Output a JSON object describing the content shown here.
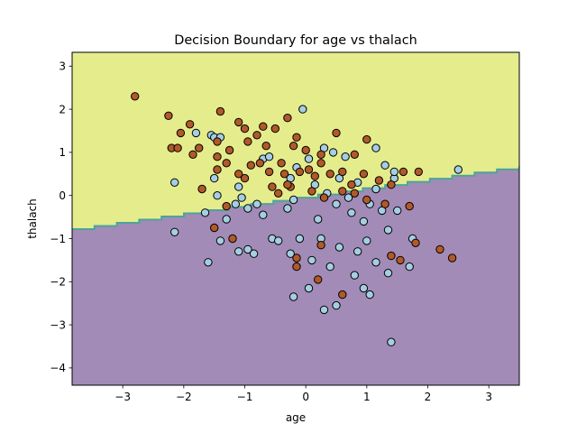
{
  "chart_data": {
    "type": "scatter",
    "title": "Decision Boundary for age vs thalach",
    "xlabel": "age",
    "ylabel": "thalach",
    "xlim": [
      -3.83,
      3.5
    ],
    "ylim": [
      -4.4,
      3.32
    ],
    "x_ticks": [
      -3,
      -2,
      -1,
      0,
      1,
      2,
      3
    ],
    "y_ticks": [
      -4,
      -3,
      -2,
      -1,
      0,
      1,
      2,
      3
    ],
    "grid": false,
    "legend": "none",
    "decision_boundary": {
      "x": [
        -3.83,
        3.5
      ],
      "y": [
        -0.78,
        0.68
      ],
      "region_above_color": "#e5ec8c",
      "region_below_color": "#a28bb6",
      "boundary_color": "#4ca49a"
    },
    "series": [
      {
        "marker_color": "#a6cee3",
        "points": [
          [
            -1.8,
            1.45
          ],
          [
            -1.55,
            1.4
          ],
          [
            -1.5,
            1.35
          ],
          [
            -1.4,
            1.35
          ],
          [
            -0.7,
            0.85
          ],
          [
            -0.6,
            0.9
          ],
          [
            -0.15,
            0.65
          ],
          [
            0.05,
            0.85
          ],
          [
            -0.05,
            2.0
          ],
          [
            0.3,
            1.1
          ],
          [
            0.45,
            1.0
          ],
          [
            0.65,
            0.9
          ],
          [
            1.15,
            1.1
          ],
          [
            1.3,
            0.7
          ],
          [
            1.45,
            0.4
          ],
          [
            2.5,
            0.6
          ],
          [
            -2.15,
            0.3
          ],
          [
            -2.15,
            -0.85
          ],
          [
            -1.65,
            -0.4
          ],
          [
            -1.5,
            0.4
          ],
          [
            -1.45,
            0.0
          ],
          [
            -1.3,
            -0.55
          ],
          [
            -1.15,
            -0.2
          ],
          [
            -1.1,
            0.2
          ],
          [
            -1.05,
            -0.05
          ],
          [
            -0.95,
            -0.3
          ],
          [
            -0.8,
            -0.2
          ],
          [
            -0.7,
            -0.45
          ],
          [
            -0.3,
            -0.3
          ],
          [
            -0.25,
            0.4
          ],
          [
            -0.2,
            -0.1
          ],
          [
            0.15,
            0.25
          ],
          [
            0.2,
            -0.55
          ],
          [
            0.35,
            0.05
          ],
          [
            0.5,
            -0.2
          ],
          [
            0.55,
            0.4
          ],
          [
            0.7,
            -0.05
          ],
          [
            0.75,
            -0.4
          ],
          [
            0.85,
            0.3
          ],
          [
            0.95,
            -0.6
          ],
          [
            1.05,
            -0.2
          ],
          [
            1.15,
            0.15
          ],
          [
            1.25,
            -0.35
          ],
          [
            1.35,
            -0.8
          ],
          [
            1.45,
            0.55
          ],
          [
            1.5,
            -0.35
          ],
          [
            -1.4,
            -1.05
          ],
          [
            -1.1,
            -1.3
          ],
          [
            -0.95,
            -1.25
          ],
          [
            -0.85,
            -1.35
          ],
          [
            -0.55,
            -1.0
          ],
          [
            -0.45,
            -1.05
          ],
          [
            -0.25,
            -1.35
          ],
          [
            -0.1,
            -1.0
          ],
          [
            0.1,
            -1.5
          ],
          [
            0.25,
            -1.0
          ],
          [
            0.4,
            -1.65
          ],
          [
            0.55,
            -1.2
          ],
          [
            0.85,
            -1.3
          ],
          [
            1.0,
            -1.05
          ],
          [
            1.15,
            -1.55
          ],
          [
            1.35,
            -1.8
          ],
          [
            1.75,
            -1.0
          ],
          [
            1.7,
            -1.65
          ],
          [
            -1.6,
            -1.55
          ],
          [
            -0.2,
            -2.35
          ],
          [
            0.05,
            -2.15
          ],
          [
            0.3,
            -2.65
          ],
          [
            0.5,
            -2.55
          ],
          [
            0.8,
            -1.85
          ],
          [
            0.95,
            -2.15
          ],
          [
            1.05,
            -2.3
          ],
          [
            1.4,
            -3.4
          ]
        ]
      },
      {
        "marker_color": "#b15928",
        "points": [
          [
            -2.8,
            2.3
          ],
          [
            -2.25,
            1.85
          ],
          [
            -1.4,
            1.95
          ],
          [
            -2.2,
            1.1
          ],
          [
            -2.1,
            1.1
          ],
          [
            -2.05,
            1.45
          ],
          [
            -1.9,
            1.65
          ],
          [
            -1.75,
            1.1
          ],
          [
            -1.85,
            0.95
          ],
          [
            -1.45,
            1.25
          ],
          [
            -1.45,
            0.9
          ],
          [
            -1.25,
            1.05
          ],
          [
            -1.1,
            1.7
          ],
          [
            -1.0,
            1.55
          ],
          [
            -0.95,
            1.25
          ],
          [
            -0.8,
            1.4
          ],
          [
            -0.7,
            1.6
          ],
          [
            -0.65,
            1.15
          ],
          [
            -0.5,
            1.55
          ],
          [
            -0.3,
            1.8
          ],
          [
            -0.2,
            1.15
          ],
          [
            -0.15,
            1.35
          ],
          [
            0.0,
            1.05
          ],
          [
            0.25,
            0.95
          ],
          [
            0.5,
            1.45
          ],
          [
            0.8,
            0.95
          ],
          [
            1.0,
            1.3
          ],
          [
            -1.7,
            0.15
          ],
          [
            -1.45,
            0.6
          ],
          [
            -1.3,
            0.75
          ],
          [
            -1.1,
            0.5
          ],
          [
            -1.0,
            0.4
          ],
          [
            -0.9,
            0.7
          ],
          [
            -0.75,
            0.75
          ],
          [
            -0.6,
            0.55
          ],
          [
            -0.4,
            0.75
          ],
          [
            -0.35,
            0.5
          ],
          [
            -0.25,
            0.2
          ],
          [
            -0.1,
            0.55
          ],
          [
            0.05,
            0.6
          ],
          [
            0.15,
            0.45
          ],
          [
            0.25,
            0.75
          ],
          [
            0.4,
            0.5
          ],
          [
            0.6,
            0.55
          ],
          [
            0.75,
            0.25
          ],
          [
            0.95,
            0.5
          ],
          [
            1.2,
            0.35
          ],
          [
            1.4,
            0.25
          ],
          [
            1.6,
            0.55
          ],
          [
            1.85,
            0.55
          ],
          [
            -1.5,
            -0.75
          ],
          [
            -1.3,
            -0.25
          ],
          [
            -0.55,
            0.2
          ],
          [
            -0.45,
            0.05
          ],
          [
            -0.3,
            0.25
          ],
          [
            0.1,
            0.1
          ],
          [
            0.3,
            -0.05
          ],
          [
            0.6,
            0.1
          ],
          [
            0.8,
            0.05
          ],
          [
            1.0,
            -0.1
          ],
          [
            1.3,
            -0.2
          ],
          [
            1.7,
            -0.25
          ],
          [
            -1.2,
            -1.0
          ],
          [
            0.25,
            -1.15
          ],
          [
            1.8,
            -1.1
          ],
          [
            2.2,
            -1.25
          ],
          [
            2.4,
            -1.45
          ],
          [
            1.55,
            -1.5
          ],
          [
            -0.15,
            -1.45
          ],
          [
            -0.15,
            -1.65
          ],
          [
            0.2,
            -1.95
          ],
          [
            0.6,
            -2.3
          ],
          [
            1.4,
            -1.4
          ]
        ]
      }
    ]
  }
}
